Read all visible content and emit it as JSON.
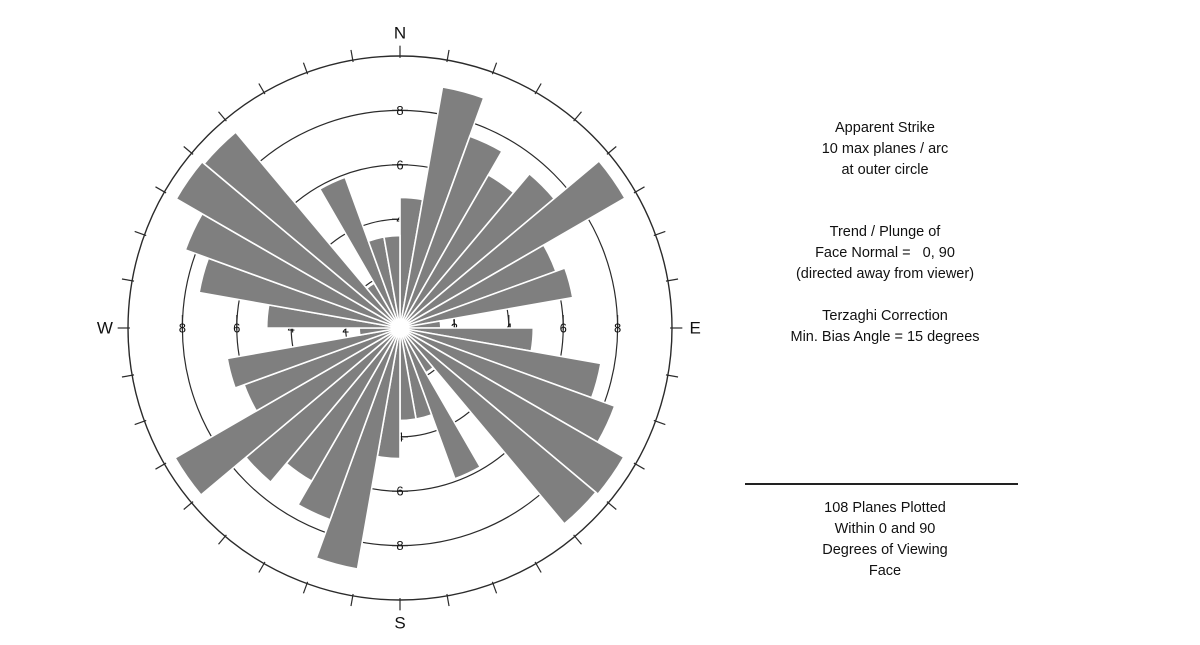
{
  "panel": {
    "apparent_strike": [
      "Apparent Strike",
      "10 max planes / arc",
      "at outer circle"
    ],
    "trend_plunge": [
      "Trend / Plunge of",
      "Face Normal =   0, 90",
      "(directed away from viewer)"
    ],
    "terzaghi": [
      "Terzaghi Correction",
      "Min. Bias Angle = 15 degrees"
    ],
    "planes_plotted": [
      "108 Planes Plotted",
      "Within 0 and 90",
      "Degrees of Viewing",
      "Face"
    ]
  },
  "compass": {
    "n": "N",
    "e": "E",
    "s": "S",
    "w": "W"
  },
  "chart_data": {
    "type": "rose",
    "title": "Apparent Strike rose diagram (10 max planes / arc at outer circle)",
    "bin_width_deg": 10,
    "azimuth_bin_start_deg": [
      0,
      10,
      20,
      30,
      40,
      50,
      60,
      70,
      80,
      90,
      100,
      110,
      120,
      130,
      140,
      150,
      160,
      170,
      180,
      190,
      200,
      210,
      220,
      230,
      240,
      250,
      260,
      270,
      280,
      290,
      300,
      310,
      320,
      330,
      340,
      350
    ],
    "planes_per_arc": [
      4.8,
      9.0,
      7.5,
      6.5,
      7.4,
      9.55,
      6.1,
      6.45,
      1.5,
      4.9,
      7.5,
      8.4,
      9.5,
      9.4,
      1.9,
      5.9,
      3.4,
      3.4,
      4.8,
      9.0,
      7.5,
      6.5,
      7.4,
      9.55,
      6.1,
      6.45,
      1.5,
      4.9,
      7.5,
      8.4,
      9.5,
      9.4,
      1.9,
      5.9,
      3.4,
      3.4
    ],
    "radial_axis": {
      "rings": [
        2,
        4,
        6,
        8,
        10
      ],
      "labeled_rings": [
        2,
        4,
        6,
        8
      ],
      "max": 10
    },
    "outer_tick_step_deg": 10,
    "legend_position": "right",
    "grid": true,
    "colors": {
      "petal": "#7f7f7f",
      "petal_outline": "#ffffff",
      "grid": "#2b2b2b",
      "text": "#111111",
      "background": "#ffffff"
    }
  }
}
